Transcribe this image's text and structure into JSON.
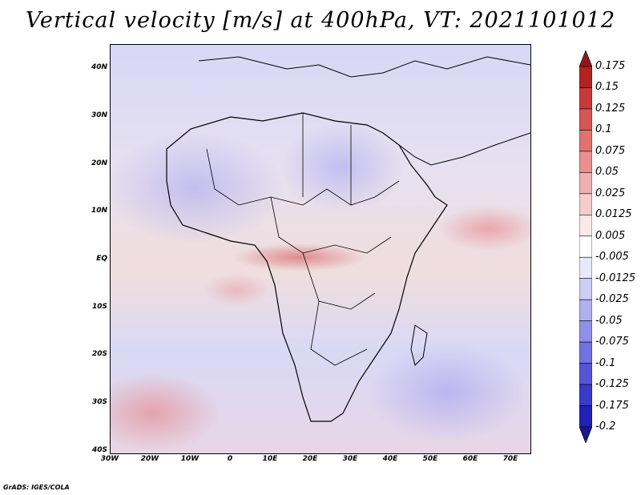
{
  "title": "Vertical velocity [m/s] at 400hPa, VT: 2021101012",
  "lat_labels": [
    "40N",
    "30N",
    "20N",
    "10N",
    "EQ",
    "10S",
    "20S",
    "30S",
    "40S"
  ],
  "lon_labels": [
    "30W",
    "20W",
    "10W",
    "0",
    "10E",
    "20E",
    "30E",
    "40E",
    "50E",
    "60E",
    "70E"
  ],
  "colorbar": {
    "labels": [
      "0.175",
      "0.15",
      "0.125",
      "0.1",
      "0.075",
      "0.05",
      "0.025",
      "0.0125",
      "0.005",
      "-0.005",
      "-0.0125",
      "-0.025",
      "-0.05",
      "-0.075",
      "-0.1",
      "-0.125",
      "-0.175",
      "-0.2"
    ],
    "colors": [
      "#8c1a1a",
      "#b32121",
      "#c83a3a",
      "#d65555",
      "#e07272",
      "#e89090",
      "#efb0b0",
      "#f5cccc",
      "#fbe8e8",
      "#ffffff",
      "#e8e8fb",
      "#ccccf5",
      "#b0b0ef",
      "#9090e8",
      "#7272e0",
      "#5555d6",
      "#3a3ac8",
      "#2121b3",
      "#1a1a8c"
    ]
  },
  "footer": "GrADS: IGES/COLA"
}
